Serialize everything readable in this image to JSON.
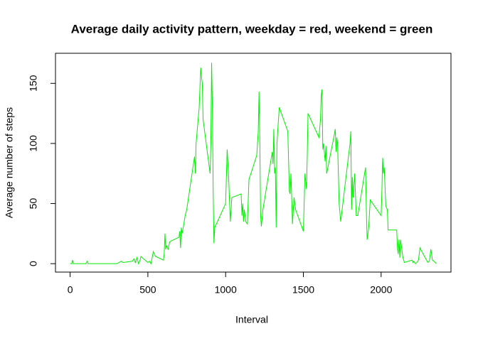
{
  "chart_data": {
    "type": "line",
    "title": "Average daily activity pattern, weekday = red, weekend = green",
    "x_label": "Interval",
    "y_label": "Average number of steps",
    "x": [
      0,
      10,
      15,
      20,
      100,
      110,
      115,
      200,
      300,
      330,
      340,
      400,
      410,
      420,
      430,
      440,
      450,
      455,
      500,
      510,
      520,
      535,
      545,
      550,
      600,
      605,
      610,
      615,
      620,
      630,
      640,
      650,
      700,
      705,
      710,
      715,
      720,
      730,
      740,
      750,
      800,
      805,
      810,
      830,
      840,
      845,
      850,
      855,
      900,
      905,
      910,
      915,
      920,
      925,
      930,
      1000,
      1010,
      1020,
      1030,
      1040,
      1100,
      1105,
      1110,
      1115,
      1120,
      1130,
      1140,
      1150,
      1200,
      1210,
      1215,
      1220,
      1225,
      1230,
      1240,
      1300,
      1305,
      1310,
      1315,
      1320,
      1325,
      1330,
      1345,
      1400,
      1405,
      1410,
      1415,
      1420,
      1430,
      1440,
      1450,
      1500,
      1505,
      1510,
      1520,
      1525,
      1530,
      1600,
      1610,
      1615,
      1620,
      1625,
      1630,
      1640,
      1645,
      1650,
      1700,
      1705,
      1710,
      1715,
      1720,
      1730,
      1740,
      1800,
      1805,
      1810,
      1815,
      1820,
      1830,
      1840,
      1850,
      1900,
      1905,
      1910,
      1920,
      1930,
      2000,
      2005,
      2010,
      2015,
      2020,
      2030,
      2040,
      2045,
      2100,
      2105,
      2110,
      2115,
      2120,
      2125,
      2130,
      2140,
      2150,
      2200,
      2205,
      2210,
      2220,
      2230,
      2240,
      2250,
      2300,
      2310,
      2320,
      2330,
      2340,
      2355
    ],
    "series": [
      {
        "name": "weekend",
        "color": "#00ee00",
        "values": [
          0,
          0,
          3,
          0,
          0,
          2,
          0,
          0,
          0,
          2,
          1,
          2,
          4,
          1,
          5,
          0,
          3,
          6,
          1,
          2,
          0,
          10,
          7,
          6,
          3,
          8,
          25,
          12,
          15,
          12,
          18,
          19,
          22,
          27,
          13,
          30,
          25,
          32,
          40,
          45,
          89,
          75,
          100,
          130,
          163,
          155,
          150,
          120,
          75,
          100,
          167,
          130,
          60,
          17,
          30,
          50,
          95,
          70,
          35,
          55,
          58,
          40,
          50,
          35,
          45,
          35,
          33,
          70,
          90,
          110,
          143,
          100,
          40,
          31,
          45,
          93,
          83,
          112,
          75,
          80,
          30,
          100,
          130,
          110,
          85,
          60,
          58,
          75,
          33,
          55,
          45,
          27,
          50,
          75,
          62,
          90,
          125,
          105,
          120,
          140,
          145,
          95,
          100,
          85,
          98,
          75,
          108,
          112,
          93,
          105,
          100,
          50,
          35,
          100,
          110,
          45,
          72,
          55,
          75,
          40,
          40,
          80,
          45,
          20,
          30,
          53,
          40,
          60,
          88,
          75,
          80,
          48,
          45,
          28,
          28,
          13,
          8,
          20,
          5,
          20,
          15,
          5,
          1,
          3,
          1,
          2,
          0,
          1,
          3,
          13,
          1,
          2,
          12,
          3,
          2,
          0
        ]
      }
    ],
    "xlim": [
      -94.2,
      2449.2
    ],
    "ylim": [
      -7,
      175
    ],
    "xticks": [
      0,
      500,
      1000,
      1500,
      2000
    ],
    "yticks": [
      0,
      50,
      100,
      150
    ]
  }
}
